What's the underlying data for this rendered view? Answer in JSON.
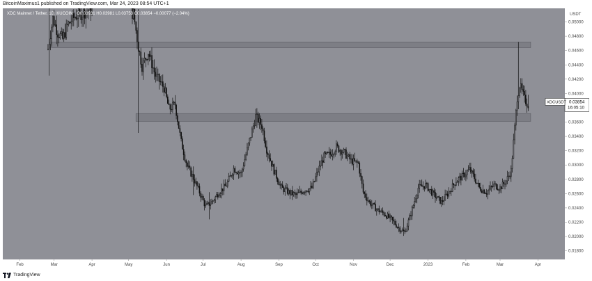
{
  "attribution": "BitcoinMaximus1 published on TradingView.com, Mar 24, 2023 08:54 UTC+1",
  "footer_brand": "TradingView",
  "colors": {
    "plot_bg": "#8f9097",
    "candle": "#111111",
    "zone_fill": "#7a7b81",
    "zone_stroke": "#5c5d63",
    "axis_bg": "#ffffff",
    "text": "#444444"
  },
  "chart_data": {
    "type": "candlestick",
    "title": "XDC Mainnet / Tether, 1D, KUCOIN",
    "ohlc_header": "O0.03931 H0.03981 L0.03753 C0.03854 −0.00077 (−2.04%)",
    "currency_label": "USDT",
    "y_ticks": [
      0.05,
      0.048,
      0.046,
      0.044,
      0.042,
      0.04,
      0.038,
      0.036,
      0.034,
      0.032,
      0.03,
      0.028,
      0.026,
      0.024,
      0.022,
      0.02,
      0.018
    ],
    "ylim": [
      0.0168,
      0.0519
    ],
    "x_ticks": [
      {
        "label": "Feb",
        "date": "2022-02-01"
      },
      {
        "label": "Mar",
        "date": "2022-03-01"
      },
      {
        "label": "Apr",
        "date": "2022-04-01"
      },
      {
        "label": "May",
        "date": "2022-05-01"
      },
      {
        "label": "Jun",
        "date": "2022-06-01"
      },
      {
        "label": "Jul",
        "date": "2022-07-01"
      },
      {
        "label": "Aug",
        "date": "2022-08-01"
      },
      {
        "label": "Sep",
        "date": "2022-09-01"
      },
      {
        "label": "Oct",
        "date": "2022-10-01"
      },
      {
        "label": "Nov",
        "date": "2022-11-01"
      },
      {
        "label": "Dec",
        "date": "2022-12-01"
      },
      {
        "label": "2023",
        "date": "2023-01-01"
      },
      {
        "label": "Feb",
        "date": "2023-02-01"
      },
      {
        "label": "Mar",
        "date": "2023-03-01"
      },
      {
        "label": "Apr",
        "date": "2023-04-01"
      }
    ],
    "xlim": [
      "2022-01-18",
      "2023-04-23"
    ],
    "resistance_zones": [
      {
        "date_start": "2022-02-25",
        "date_end": "2023-03-26",
        "y_low": 0.0464,
        "y_high": 0.0472
      },
      {
        "date_start": "2022-05-07",
        "date_end": "2023-03-26",
        "y_low": 0.0361,
        "y_high": 0.0372
      }
    ],
    "last_price": {
      "symbol": "XDCUSDT",
      "price": "0.03854",
      "countdown": "16:05:10",
      "value": 0.03854
    },
    "price_path": [
      {
        "date": "2022-02-24",
        "value": 0.0462
      },
      {
        "date": "2022-02-28",
        "value": 0.0505
      },
      {
        "date": "2022-03-04",
        "value": 0.0485
      },
      {
        "date": "2022-03-08",
        "value": 0.0476
      },
      {
        "date": "2022-03-12",
        "value": 0.0495
      },
      {
        "date": "2022-03-18",
        "value": 0.0508
      },
      {
        "date": "2022-03-24",
        "value": 0.0512
      },
      {
        "date": "2022-03-30",
        "value": 0.0518
      },
      {
        "date": "2022-05-05",
        "value": 0.0512
      },
      {
        "date": "2022-05-09",
        "value": 0.0465
      },
      {
        "date": "2022-05-12",
        "value": 0.0438
      },
      {
        "date": "2022-05-17",
        "value": 0.0458
      },
      {
        "date": "2022-05-23",
        "value": 0.0425
      },
      {
        "date": "2022-05-30",
        "value": 0.0408
      },
      {
        "date": "2022-06-03",
        "value": 0.0378
      },
      {
        "date": "2022-06-08",
        "value": 0.0385
      },
      {
        "date": "2022-06-13",
        "value": 0.0332
      },
      {
        "date": "2022-06-18",
        "value": 0.0298
      },
      {
        "date": "2022-06-23",
        "value": 0.0282
      },
      {
        "date": "2022-06-28",
        "value": 0.0262
      },
      {
        "date": "2022-07-03",
        "value": 0.0242
      },
      {
        "date": "2022-07-08",
        "value": 0.0248
      },
      {
        "date": "2022-07-14",
        "value": 0.0262
      },
      {
        "date": "2022-07-20",
        "value": 0.0272
      },
      {
        "date": "2022-07-26",
        "value": 0.0295
      },
      {
        "date": "2022-08-01",
        "value": 0.0288
      },
      {
        "date": "2022-08-07",
        "value": 0.0328
      },
      {
        "date": "2022-08-13",
        "value": 0.0368
      },
      {
        "date": "2022-08-18",
        "value": 0.0355
      },
      {
        "date": "2022-08-22",
        "value": 0.0322
      },
      {
        "date": "2022-08-28",
        "value": 0.0292
      },
      {
        "date": "2022-09-03",
        "value": 0.0268
      },
      {
        "date": "2022-09-09",
        "value": 0.0262
      },
      {
        "date": "2022-09-15",
        "value": 0.0258
      },
      {
        "date": "2022-09-22",
        "value": 0.0265
      },
      {
        "date": "2022-09-28",
        "value": 0.0268
      },
      {
        "date": "2022-10-03",
        "value": 0.0292
      },
      {
        "date": "2022-10-08",
        "value": 0.0312
      },
      {
        "date": "2022-10-13",
        "value": 0.0315
      },
      {
        "date": "2022-10-18",
        "value": 0.0325
      },
      {
        "date": "2022-10-24",
        "value": 0.0318
      },
      {
        "date": "2022-10-30",
        "value": 0.0306
      },
      {
        "date": "2022-11-05",
        "value": 0.0302
      },
      {
        "date": "2022-11-09",
        "value": 0.0262
      },
      {
        "date": "2022-11-14",
        "value": 0.0248
      },
      {
        "date": "2022-11-20",
        "value": 0.0238
      },
      {
        "date": "2022-11-26",
        "value": 0.0232
      },
      {
        "date": "2022-12-02",
        "value": 0.0224
      },
      {
        "date": "2022-12-08",
        "value": 0.0212
      },
      {
        "date": "2022-12-13",
        "value": 0.0206
      },
      {
        "date": "2022-12-18",
        "value": 0.0232
      },
      {
        "date": "2022-12-24",
        "value": 0.0268
      },
      {
        "date": "2022-12-30",
        "value": 0.0272
      },
      {
        "date": "2023-01-06",
        "value": 0.0258
      },
      {
        "date": "2023-01-12",
        "value": 0.0248
      },
      {
        "date": "2023-01-18",
        "value": 0.0262
      },
      {
        "date": "2023-01-24",
        "value": 0.0278
      },
      {
        "date": "2023-01-30",
        "value": 0.0285
      },
      {
        "date": "2023-02-04",
        "value": 0.0294
      },
      {
        "date": "2023-02-08",
        "value": 0.0282
      },
      {
        "date": "2023-02-12",
        "value": 0.0268
      },
      {
        "date": "2023-02-18",
        "value": 0.0262
      },
      {
        "date": "2023-02-24",
        "value": 0.0272
      },
      {
        "date": "2023-03-01",
        "value": 0.0268
      },
      {
        "date": "2023-03-06",
        "value": 0.0278
      },
      {
        "date": "2023-03-10",
        "value": 0.0292
      },
      {
        "date": "2023-03-13",
        "value": 0.0352
      },
      {
        "date": "2023-03-15",
        "value": 0.0395
      },
      {
        "date": "2023-03-17",
        "value": 0.0412
      },
      {
        "date": "2023-03-19",
        "value": 0.0402
      },
      {
        "date": "2023-03-21",
        "value": 0.0392
      },
      {
        "date": "2023-03-24",
        "value": 0.0385
      }
    ]
  }
}
